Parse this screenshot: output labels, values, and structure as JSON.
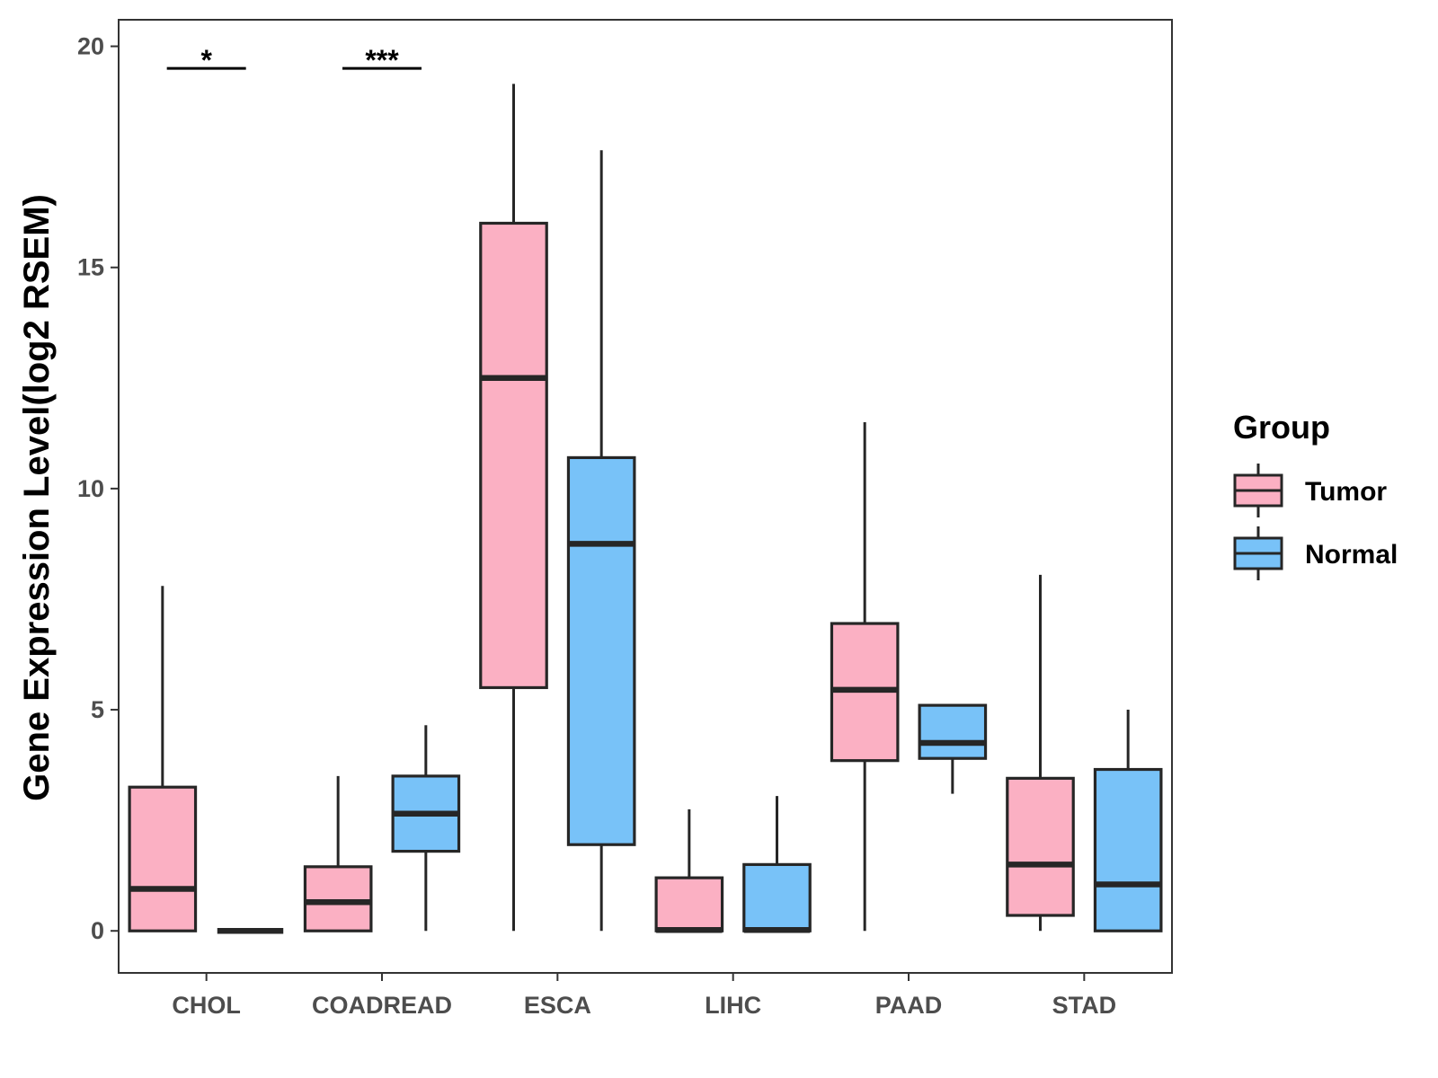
{
  "chart_data": {
    "type": "boxplot",
    "title": "",
    "xlabel": "",
    "ylabel": "Gene Expression Level(log2 RSEM)",
    "ylim": [
      -0.95,
      20.6
    ],
    "yticks": [
      0,
      5,
      10,
      15,
      20
    ],
    "categories": [
      "CHOL",
      "COADREAD",
      "ESCA",
      "LIHC",
      "PAAD",
      "STAD"
    ],
    "legend": {
      "title": "Group",
      "position": "right"
    },
    "series": [
      {
        "name": "Tumor",
        "color": "#FBB0C3",
        "boxes": [
          {
            "whisker_low": 0,
            "q1": 0,
            "median": 0.95,
            "q3": 3.25,
            "whisker_high": 7.8
          },
          {
            "whisker_low": 0,
            "q1": 0,
            "median": 0.65,
            "q3": 1.45,
            "whisker_high": 3.5
          },
          {
            "whisker_low": 0,
            "q1": 5.5,
            "median": 12.5,
            "q3": 16.0,
            "whisker_high": 19.15
          },
          {
            "whisker_low": 0,
            "q1": 0,
            "median": 0.02,
            "q3": 1.2,
            "whisker_high": 2.75
          },
          {
            "whisker_low": 0,
            "q1": 3.85,
            "median": 5.45,
            "q3": 6.95,
            "whisker_high": 11.5
          },
          {
            "whisker_low": 0,
            "q1": 0.35,
            "median": 1.5,
            "q3": 3.45,
            "whisker_high": 8.05
          }
        ]
      },
      {
        "name": "Normal",
        "color": "#78C2F8",
        "boxes": [
          {
            "whisker_low": 0,
            "q1": 0,
            "median": 0,
            "q3": 0,
            "whisker_high": 0
          },
          {
            "whisker_low": 0,
            "q1": 1.8,
            "median": 2.65,
            "q3": 3.5,
            "whisker_high": 4.65
          },
          {
            "whisker_low": 0,
            "q1": 1.95,
            "median": 8.75,
            "q3": 10.7,
            "whisker_high": 17.65
          },
          {
            "whisker_low": 0,
            "q1": 0,
            "median": 0.02,
            "q3": 1.5,
            "whisker_high": 3.05
          },
          {
            "whisker_low": 3.1,
            "q1": 3.9,
            "median": 4.25,
            "q3": 5.1,
            "whisker_high": 5.1
          },
          {
            "whisker_low": 0,
            "q1": 0,
            "median": 1.05,
            "q3": 3.65,
            "whisker_high": 5.0
          }
        ]
      }
    ],
    "significance": [
      {
        "category": "CHOL",
        "label": "*",
        "y": 19.5
      },
      {
        "category": "COADREAD",
        "label": "***",
        "y": 19.5
      }
    ]
  }
}
